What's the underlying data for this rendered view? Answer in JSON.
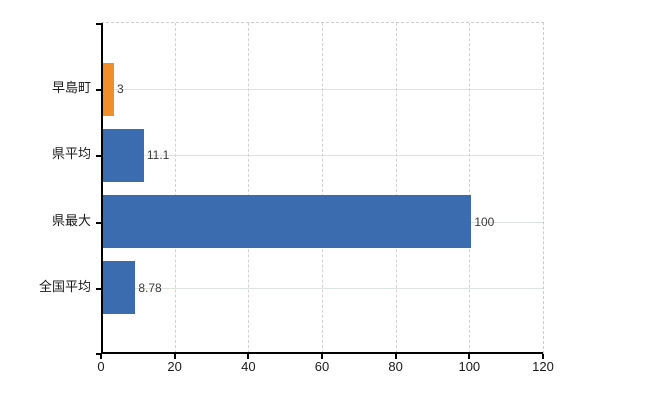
{
  "chart_data": {
    "type": "bar",
    "orientation": "horizontal",
    "title": "",
    "xlabel": "",
    "ylabel": "",
    "legend": "none",
    "categories": [
      "早島町",
      "県平均",
      "県最大",
      "全国平均"
    ],
    "values": [
      3,
      11.1,
      100,
      8.78
    ],
    "value_labels": [
      "3",
      "11.1",
      "100",
      "8.78"
    ],
    "bar_colors": [
      "#ef8e2b",
      "#3b6cb0",
      "#3b6cb0",
      "#3b6cb0"
    ],
    "xlim": [
      0,
      120
    ],
    "x_ticks": [
      0,
      20,
      40,
      60,
      80,
      100,
      120
    ],
    "x_tick_labels": [
      "0",
      "20",
      "40",
      "60",
      "80",
      "100",
      "120"
    ],
    "grid": {
      "vertical": "dashed",
      "horizontal": "solid"
    }
  },
  "colors": {
    "background": "#ffffff",
    "axis": "#000000",
    "vertical_grid": "#d5cfd7",
    "horizontal_grid": "#dde3dd",
    "plot_border_dashed": "#cfcacf",
    "bar_orange": "#ef8e2b",
    "bar_blue": "#3b6cb0",
    "tick_label": "#1a1a1a",
    "value_label": "#3a3a3a"
  }
}
